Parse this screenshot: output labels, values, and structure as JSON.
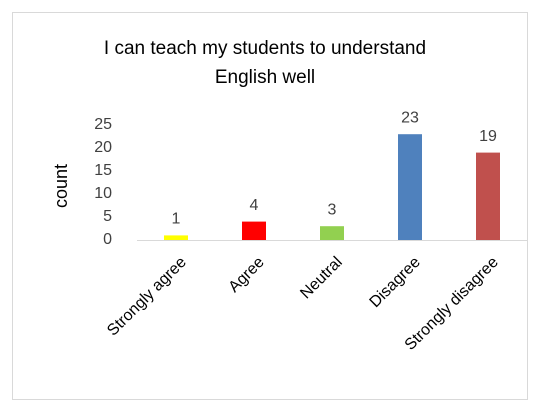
{
  "chart_data": {
    "type": "bar",
    "title": "I can teach my students to understand English well",
    "y_label": "count",
    "categories": [
      "Strongly agree",
      "Agree",
      "Neutral",
      "Disagree",
      "Strongly disagree"
    ],
    "values": [
      1,
      4,
      3,
      23,
      19
    ],
    "colors": [
      "#ffff00",
      "#ff0000",
      "#92d050",
      "#4f81bd",
      "#c0504d"
    ],
    "ylim": [
      0,
      25
    ],
    "yticks": [
      0,
      5,
      10,
      15,
      20,
      25
    ],
    "grid": false
  }
}
